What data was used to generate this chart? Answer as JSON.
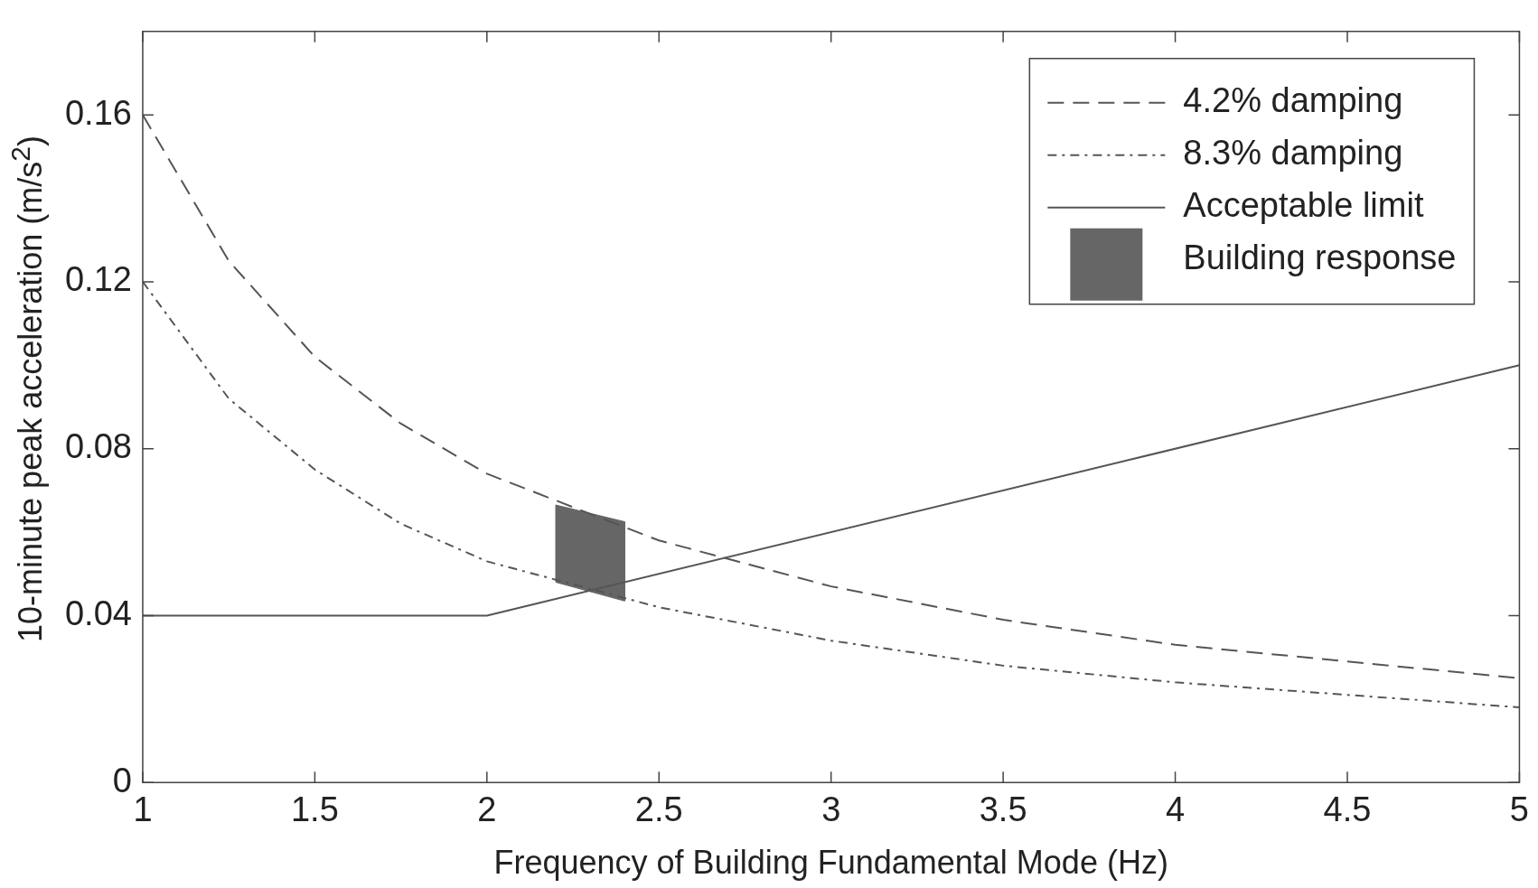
{
  "chart_data": {
    "type": "line",
    "xlabel": "Frequency of Building Fundamental Mode (Hz)",
    "ylabel": "10-minute peak acceleration (m/s$^{2}$)",
    "xlim": [
      1,
      5
    ],
    "xticks": [
      1,
      1.5,
      2,
      2.5,
      3,
      3.5,
      4,
      4.5,
      5
    ],
    "ylim": [
      0,
      0.18
    ],
    "yticks": [
      0,
      0.04,
      0.08,
      0.12,
      0.16
    ],
    "grid": false,
    "legend": "top right",
    "series": [
      {
        "name": "4.2% damping",
        "line_style": "dashed",
        "color": "#555555",
        "x": [
          1,
          1.25,
          1.5,
          1.75,
          2,
          2.5,
          3,
          3.5,
          4,
          4.5,
          5
        ],
        "values": [
          0.16,
          0.125,
          0.102,
          0.086,
          0.074,
          0.058,
          0.047,
          0.039,
          0.033,
          0.029,
          0.025
        ]
      },
      {
        "name": "8.3% damping",
        "line_style": "dashed",
        "color": "#555555",
        "x": [
          1,
          1.25,
          1.5,
          1.75,
          2,
          2.5,
          3,
          3.5,
          4,
          4.5,
          5
        ],
        "values": [
          0.12,
          0.092,
          0.075,
          0.062,
          0.053,
          0.042,
          0.034,
          0.028,
          0.024,
          0.021,
          0.018
        ]
      },
      {
        "name": "Acceptable limit",
        "line_style": "solid",
        "color": "#555555",
        "x": [
          1,
          2,
          5
        ],
        "values": [
          0.04,
          0.04,
          0.1
        ]
      },
      {
        "name": "Building response",
        "type": "area",
        "color": "#666666",
        "x": [
          2.2,
          2.4,
          2.4,
          2.2,
          2.2
        ],
        "values": [
          0.0665,
          0.0625,
          0.0435,
          0.048,
          0.0665
        ]
      }
    ]
  }
}
